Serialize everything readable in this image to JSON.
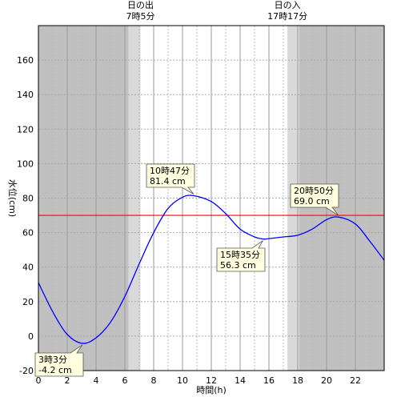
{
  "chart_data": {
    "type": "line",
    "title": "",
    "xlabel": "時間(h)",
    "ylabel": "水位(cm)",
    "xlim": [
      0,
      24
    ],
    "ylim": [
      -20,
      180
    ],
    "x_ticks": [
      0,
      2,
      4,
      6,
      8,
      10,
      12,
      14,
      16,
      18,
      20,
      22
    ],
    "y_ticks": [
      -20,
      0,
      20,
      40,
      60,
      80,
      100,
      120,
      140,
      160
    ],
    "grid": true,
    "series": [
      {
        "color": "#0000ff",
        "x": [
          0,
          1,
          2,
          3.05,
          4,
          5,
          6,
          7,
          8,
          9,
          10,
          10.78,
          12,
          13,
          14,
          15,
          15.58,
          16,
          17,
          18,
          19,
          20,
          20.83,
          22,
          23,
          24
        ],
        "y": [
          31,
          14,
          1,
          -4.2,
          -1,
          8,
          23,
          42,
          60,
          74,
          80.5,
          81.4,
          78,
          71,
          62,
          57.5,
          56.3,
          56.5,
          57.5,
          58.5,
          62,
          67.5,
          69.0,
          65,
          55,
          44
        ]
      }
    ],
    "reference_line": {
      "y": 70,
      "color": "#ff0000"
    },
    "sunrise": {
      "label": "日の出",
      "time_label": "7時5分",
      "hour": 7.083
    },
    "sunset": {
      "label": "日の入",
      "time_label": "17時17分",
      "hour": 17.283
    },
    "annotations": [
      {
        "time": "3時3分",
        "value": "-4.2 cm",
        "x": 3.05,
        "y": -4.2,
        "kind": "low"
      },
      {
        "time": "10時47分",
        "value": "81.4 cm",
        "x": 10.78,
        "y": 81.4,
        "kind": "high"
      },
      {
        "time": "15時35分",
        "value": "56.3 cm",
        "x": 15.58,
        "y": 56.3,
        "kind": "low"
      },
      {
        "time": "20時50分",
        "value": "69.0 cm",
        "x": 20.83,
        "y": 69.0,
        "kind": "high"
      }
    ],
    "colors": {
      "night": "#c0c0c0",
      "twilight": "#d9d9d9",
      "day": "#ffffff",
      "annotation_bg": "#ffffe0"
    }
  }
}
